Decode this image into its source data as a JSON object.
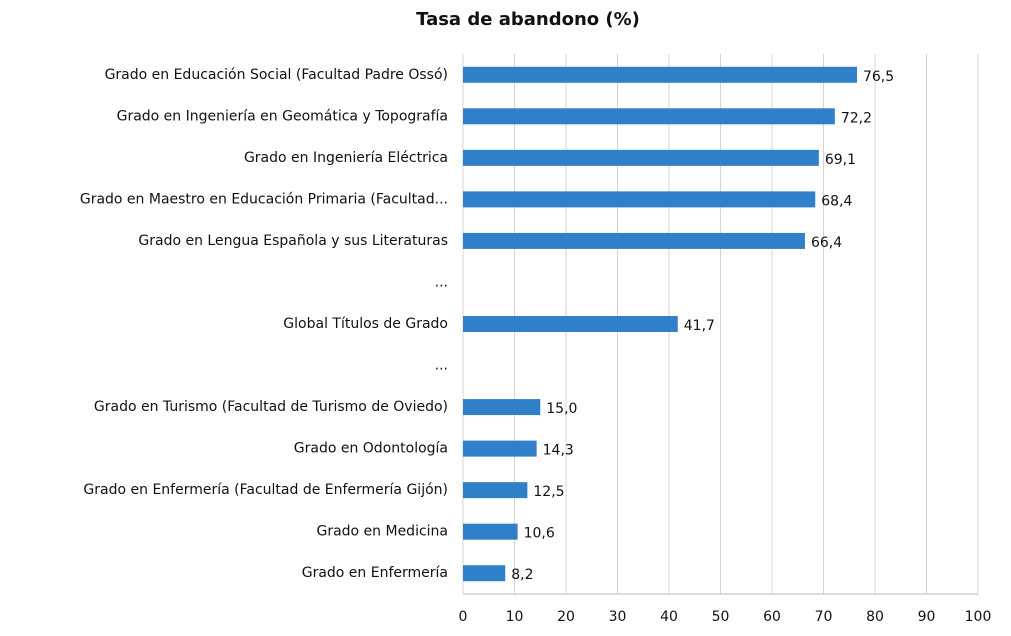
{
  "chart_data": {
    "type": "bar",
    "orientation": "horizontal",
    "title": "Tasa de abandono (%)",
    "categories": [
      "Grado en Educación Social (Facultad Padre Ossó)",
      "Grado en Ingeniería en Geomática y Topografía",
      "Grado en Ingeniería Eléctrica",
      "Grado en Maestro en Educación Primaria (Facultad...",
      "Grado en Lengua Española y sus Literaturas",
      "...",
      "Global Títulos de Grado",
      "...",
      "Grado en Turismo (Facultad de Turismo de Oviedo)",
      "Grado en Odontología",
      "Grado en Enfermería (Facultad de Enfermería Gijón)",
      "Grado en Medicina",
      "Grado en Enfermería"
    ],
    "values": [
      76.5,
      72.2,
      69.1,
      68.4,
      66.4,
      null,
      41.7,
      null,
      15.0,
      14.3,
      12.5,
      10.6,
      8.2
    ],
    "value_labels": [
      "76,5",
      "72,2",
      "69,1",
      "68,4",
      "66,4",
      null,
      "41,7",
      null,
      "15,0",
      "14,3",
      "12,5",
      "10,6",
      "8,2"
    ],
    "color": "#2f80c9",
    "xlim": [
      0,
      100
    ],
    "xticks": [
      0,
      10,
      20,
      30,
      40,
      50,
      60,
      70,
      80,
      90,
      100
    ],
    "grid": true
  }
}
